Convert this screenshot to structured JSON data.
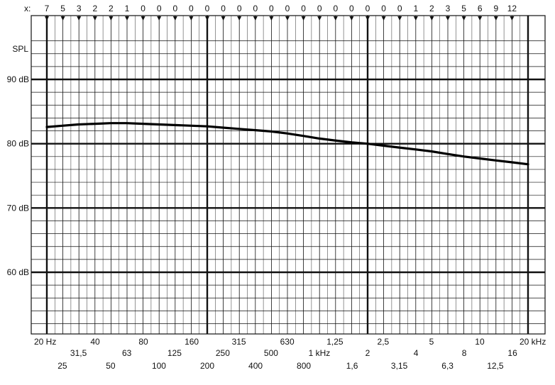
{
  "chart_data": {
    "type": "line",
    "title": "",
    "xlabel": "",
    "ylabel": "SPL",
    "x_scale": "log",
    "x_unit_low": "Hz",
    "x_unit_high": "kHz",
    "xlim_hz": [
      20,
      20000
    ],
    "ylim_db": [
      50,
      96
    ],
    "grid": true,
    "x_marker_prefix": "x:",
    "x_marker_values": [
      "7",
      "5",
      "3",
      "2",
      "2",
      "1",
      "0",
      "0",
      "0",
      "0",
      "0",
      "0",
      "0",
      "0",
      "0",
      "0",
      "0",
      "0",
      "0",
      "0",
      "0",
      "0",
      "0",
      "1",
      "2",
      "3",
      "5",
      "6",
      "9",
      "12"
    ],
    "y_ticks": [
      {
        "value": 90,
        "label": "90 dB"
      },
      {
        "value": 80,
        "label": "80 dB"
      },
      {
        "value": 70,
        "label": "70 dB"
      },
      {
        "value": 60,
        "label": "60 dB"
      }
    ],
    "x_ticks": [
      {
        "hz": 20,
        "label": "20 Hz",
        "row": 0
      },
      {
        "hz": 25,
        "label": "25",
        "row": 2
      },
      {
        "hz": 31.5,
        "label": "31,5",
        "row": 1
      },
      {
        "hz": 40,
        "label": "40",
        "row": 0
      },
      {
        "hz": 50,
        "label": "50",
        "row": 2
      },
      {
        "hz": 63,
        "label": "63",
        "row": 1
      },
      {
        "hz": 80,
        "label": "80",
        "row": 0
      },
      {
        "hz": 100,
        "label": "100",
        "row": 2
      },
      {
        "hz": 125,
        "label": "125",
        "row": 1
      },
      {
        "hz": 160,
        "label": "160",
        "row": 0
      },
      {
        "hz": 200,
        "label": "200",
        "row": 2
      },
      {
        "hz": 250,
        "label": "250",
        "row": 1
      },
      {
        "hz": 315,
        "label": "315",
        "row": 0
      },
      {
        "hz": 400,
        "label": "400",
        "row": 2
      },
      {
        "hz": 500,
        "label": "500",
        "row": 1
      },
      {
        "hz": 630,
        "label": "630",
        "row": 0
      },
      {
        "hz": 800,
        "label": "800",
        "row": 2
      },
      {
        "hz": 1000,
        "label": "1 kHz",
        "row": 1
      },
      {
        "hz": 1250,
        "label": "1,25",
        "row": 0
      },
      {
        "hz": 1600,
        "label": "1,6",
        "row": 2
      },
      {
        "hz": 2000,
        "label": "2",
        "row": 1
      },
      {
        "hz": 2500,
        "label": "2,5",
        "row": 0
      },
      {
        "hz": 3150,
        "label": "3,15",
        "row": 2
      },
      {
        "hz": 4000,
        "label": "4",
        "row": 1
      },
      {
        "hz": 5000,
        "label": "5",
        "row": 0
      },
      {
        "hz": 6300,
        "label": "6,3",
        "row": 2
      },
      {
        "hz": 8000,
        "label": "8",
        "row": 1
      },
      {
        "hz": 10000,
        "label": "10",
        "row": 0
      },
      {
        "hz": 12500,
        "label": "12,5",
        "row": 2
      },
      {
        "hz": 16000,
        "label": "16",
        "row": 1
      },
      {
        "hz": 20000,
        "label": "20 kHz",
        "row": 0
      }
    ],
    "series": [
      {
        "x": [
          20,
          25,
          31.5,
          40,
          50,
          63,
          80,
          100,
          125,
          160,
          200,
          250,
          315,
          400,
          500,
          630,
          800,
          1000,
          1250,
          1600,
          2000,
          2500,
          3150,
          4000,
          5000,
          6300,
          8000,
          10000,
          12500,
          16000,
          20000
        ],
        "y": [
          82.6,
          82.8,
          83.0,
          83.1,
          83.2,
          83.2,
          83.1,
          83.0,
          82.9,
          82.8,
          82.7,
          82.5,
          82.3,
          82.1,
          81.9,
          81.6,
          81.2,
          80.8,
          80.5,
          80.2,
          80.0,
          79.7,
          79.4,
          79.1,
          78.8,
          78.4,
          78.0,
          77.7,
          77.4,
          77.1,
          76.8
        ]
      }
    ]
  }
}
